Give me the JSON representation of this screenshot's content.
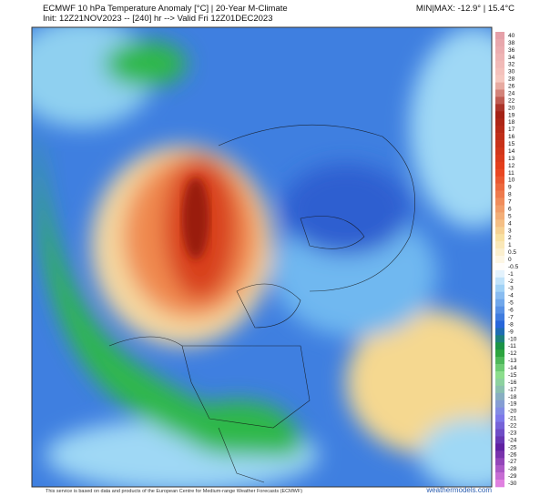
{
  "header": {
    "title_lines": [
      "ECMWF 10 hPa Temperature Anomaly [°C] | 20-Year M-Climate",
      "Init: 12Z21NOV2023 -- [240] hr --> Valid Fri 12Z01DEC2023"
    ],
    "min_max": "MIN|MAX: -12.9° | 15.4°C"
  },
  "colorbar": {
    "labels": [
      "40",
      "38",
      "36",
      "34",
      "32",
      "30",
      "28",
      "26",
      "24",
      "22",
      "20",
      "19",
      "18",
      "17",
      "16",
      "15",
      "14",
      "13",
      "12",
      "11",
      "10",
      "9",
      "8",
      "7",
      "6",
      "5",
      "4",
      "3",
      "2",
      "1",
      "0.5",
      "0",
      "-0.5",
      "-1",
      "-2",
      "-3",
      "-4",
      "-5",
      "-6",
      "-7",
      "-8",
      "-9",
      "-10",
      "-11",
      "-12",
      "-13",
      "-14",
      "-15",
      "-16",
      "-17",
      "-18",
      "-19",
      "-20",
      "-21",
      "-22",
      "-23",
      "-24",
      "-25",
      "-26",
      "-27",
      "-28",
      "-29",
      "-30"
    ]
  },
  "footer": {
    "credit": "This service is based on data and products of the European Centre for Medium-range Weather Forecasts (ECMWF)",
    "site": "weathermodels.com"
  }
}
